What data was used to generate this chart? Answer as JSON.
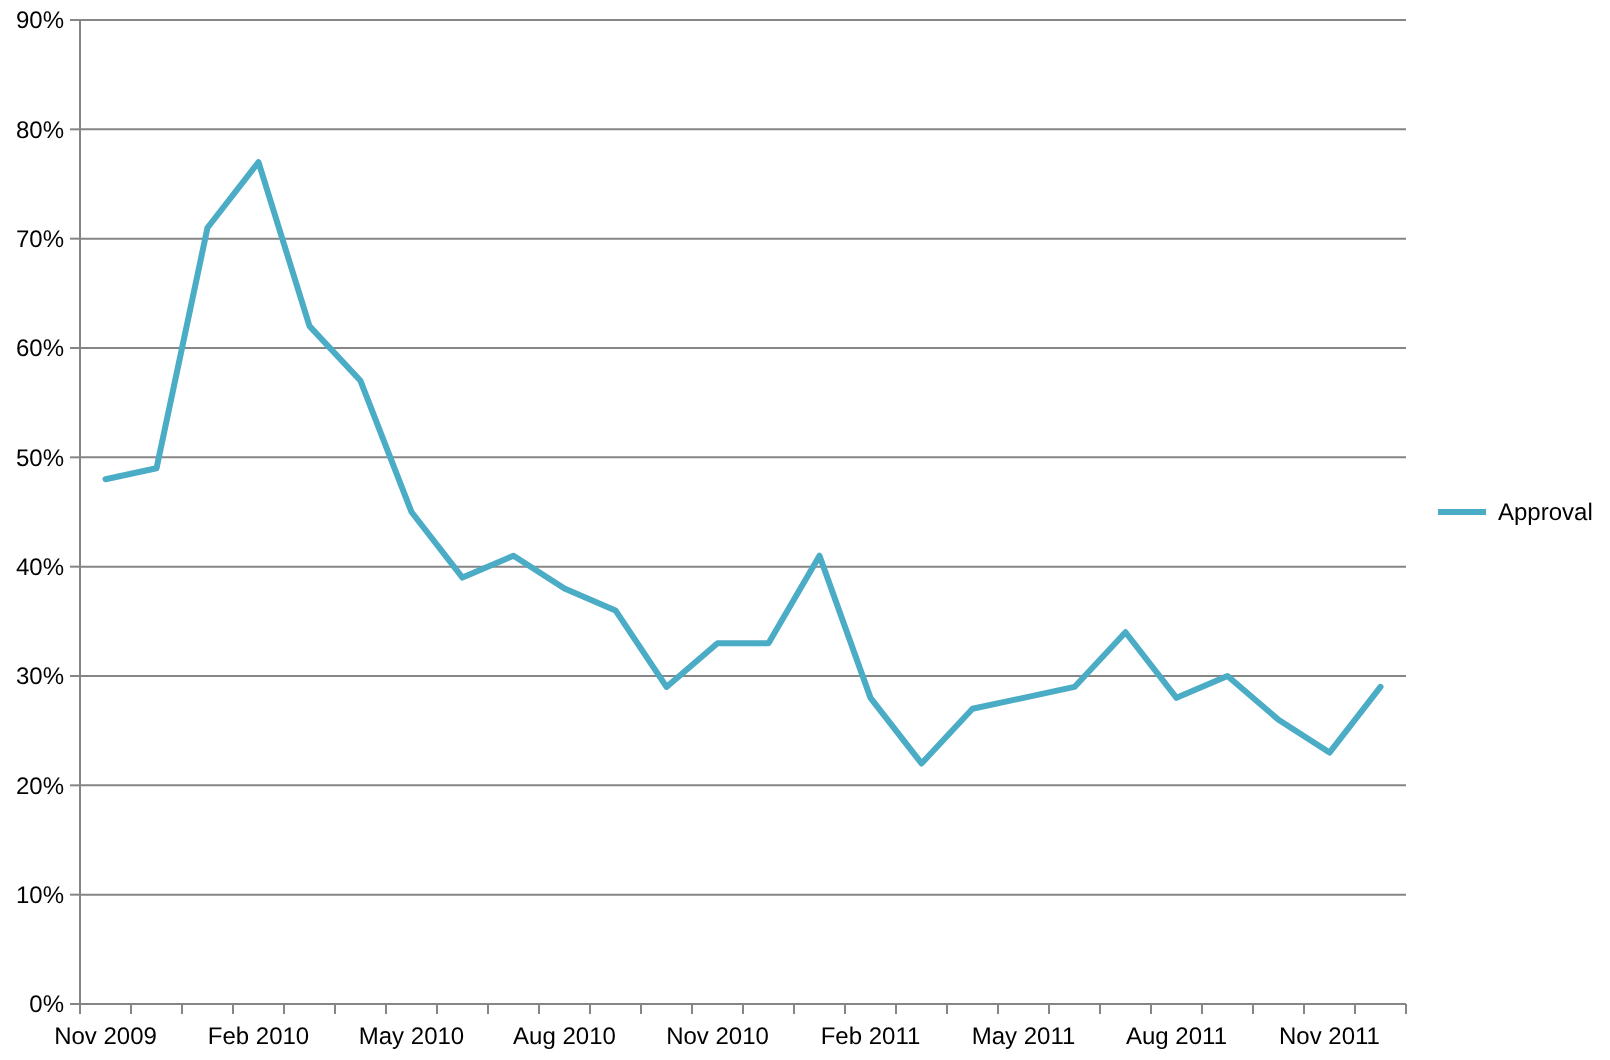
{
  "chart_data": {
    "type": "line",
    "categories": [
      "Nov 2009",
      null,
      null,
      "Feb 2010",
      null,
      null,
      "May 2010",
      null,
      null,
      "Aug 2010",
      null,
      null,
      "Nov 2010",
      null,
      null,
      "Feb 2011",
      null,
      null,
      "May 2011",
      null,
      null,
      "Aug 2011",
      null,
      null,
      "Nov 2011",
      null
    ],
    "series": [
      {
        "name": "Approval",
        "color": "#4bacc6",
        "values": [
          48,
          49,
          71,
          77,
          62,
          57,
          45,
          39,
          41,
          38,
          36,
          29,
          33,
          33,
          41,
          28,
          22,
          27,
          28,
          29,
          34,
          28,
          30,
          26,
          23,
          29
        ]
      }
    ],
    "ylim": [
      0,
      90
    ],
    "yticks": [
      {
        "value": 0,
        "label": "0%"
      },
      {
        "value": 10,
        "label": "10%"
      },
      {
        "value": 20,
        "label": "20%"
      },
      {
        "value": 30,
        "label": "30%"
      },
      {
        "value": 40,
        "label": "40%"
      },
      {
        "value": 50,
        "label": "50%"
      },
      {
        "value": 60,
        "label": "60%"
      },
      {
        "value": 70,
        "label": "70%"
      },
      {
        "value": 80,
        "label": "80%"
      },
      {
        "value": 90,
        "label": "90%"
      }
    ],
    "grid": "y",
    "legend": "right",
    "marker": "none",
    "line_style": "solid"
  }
}
